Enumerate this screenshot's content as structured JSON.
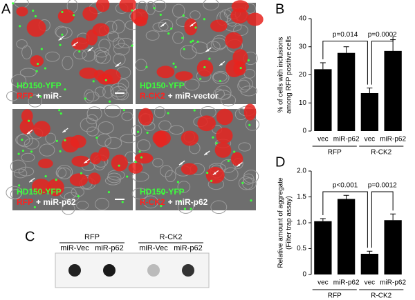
{
  "panel_labels": [
    "A",
    "B",
    "C",
    "D"
  ],
  "microscopy": [
    {
      "marker": "HD150-YFP",
      "construct": "RFP",
      "treatment": "+ miR-"
    },
    {
      "marker": "HD150-YFP",
      "construct": "R-CK2",
      "treatment": "+ miR-vector"
    },
    {
      "marker": "HD150-YFP",
      "construct": "RFP",
      "treatment": "+ miR-p62"
    },
    {
      "marker": "HD150-YFP",
      "construct": "R-CK2",
      "treatment": "+ miR-p62"
    }
  ],
  "blot": {
    "groups": [
      "RFP",
      "R-CK2"
    ],
    "lanes": [
      "miR-Vec",
      "miR-p62",
      "miR-Vec",
      "miR-p62"
    ]
  },
  "chart_data": [
    {
      "type": "bar",
      "ylabel": [
        "% of cells with inclusions",
        "among RFP positive cells"
      ],
      "categories": [
        "vec",
        "miR-p62",
        "vec",
        "miR-p62"
      ],
      "groups": [
        "RFP",
        "R-CK2"
      ],
      "values": [
        22,
        27.8,
        13.5,
        28.5
      ],
      "errors": [
        2.3,
        2.2,
        1.8,
        4
      ],
      "color": "#000000",
      "ylim": [
        0,
        40
      ],
      "yticks": [
        0,
        10,
        20,
        30,
        40
      ],
      "annotations": [
        "p=0.014",
        "p=0.0002"
      ]
    },
    {
      "type": "bar",
      "ylabel": [
        "Relative amount of aggregate",
        "(Filter trap assay)"
      ],
      "categories": [
        "vec",
        "miR-p62",
        "vec",
        "miR-p62"
      ],
      "groups": [
        "RFP",
        "R-CK2"
      ],
      "values": [
        1.03,
        1.46,
        0.4,
        1.05
      ],
      "errors": [
        0.05,
        0.07,
        0.05,
        0.12
      ],
      "color": "#000000",
      "ylim": [
        0,
        2.0
      ],
      "yticks": [
        0,
        0.5,
        {
          "value": 1.0,
          "label": "1.0"
        },
        1.5,
        {
          "value": 2.0,
          "label": "2.0"
        }
      ],
      "annotations": [
        "p<0.001",
        "p=0.0012"
      ]
    }
  ]
}
